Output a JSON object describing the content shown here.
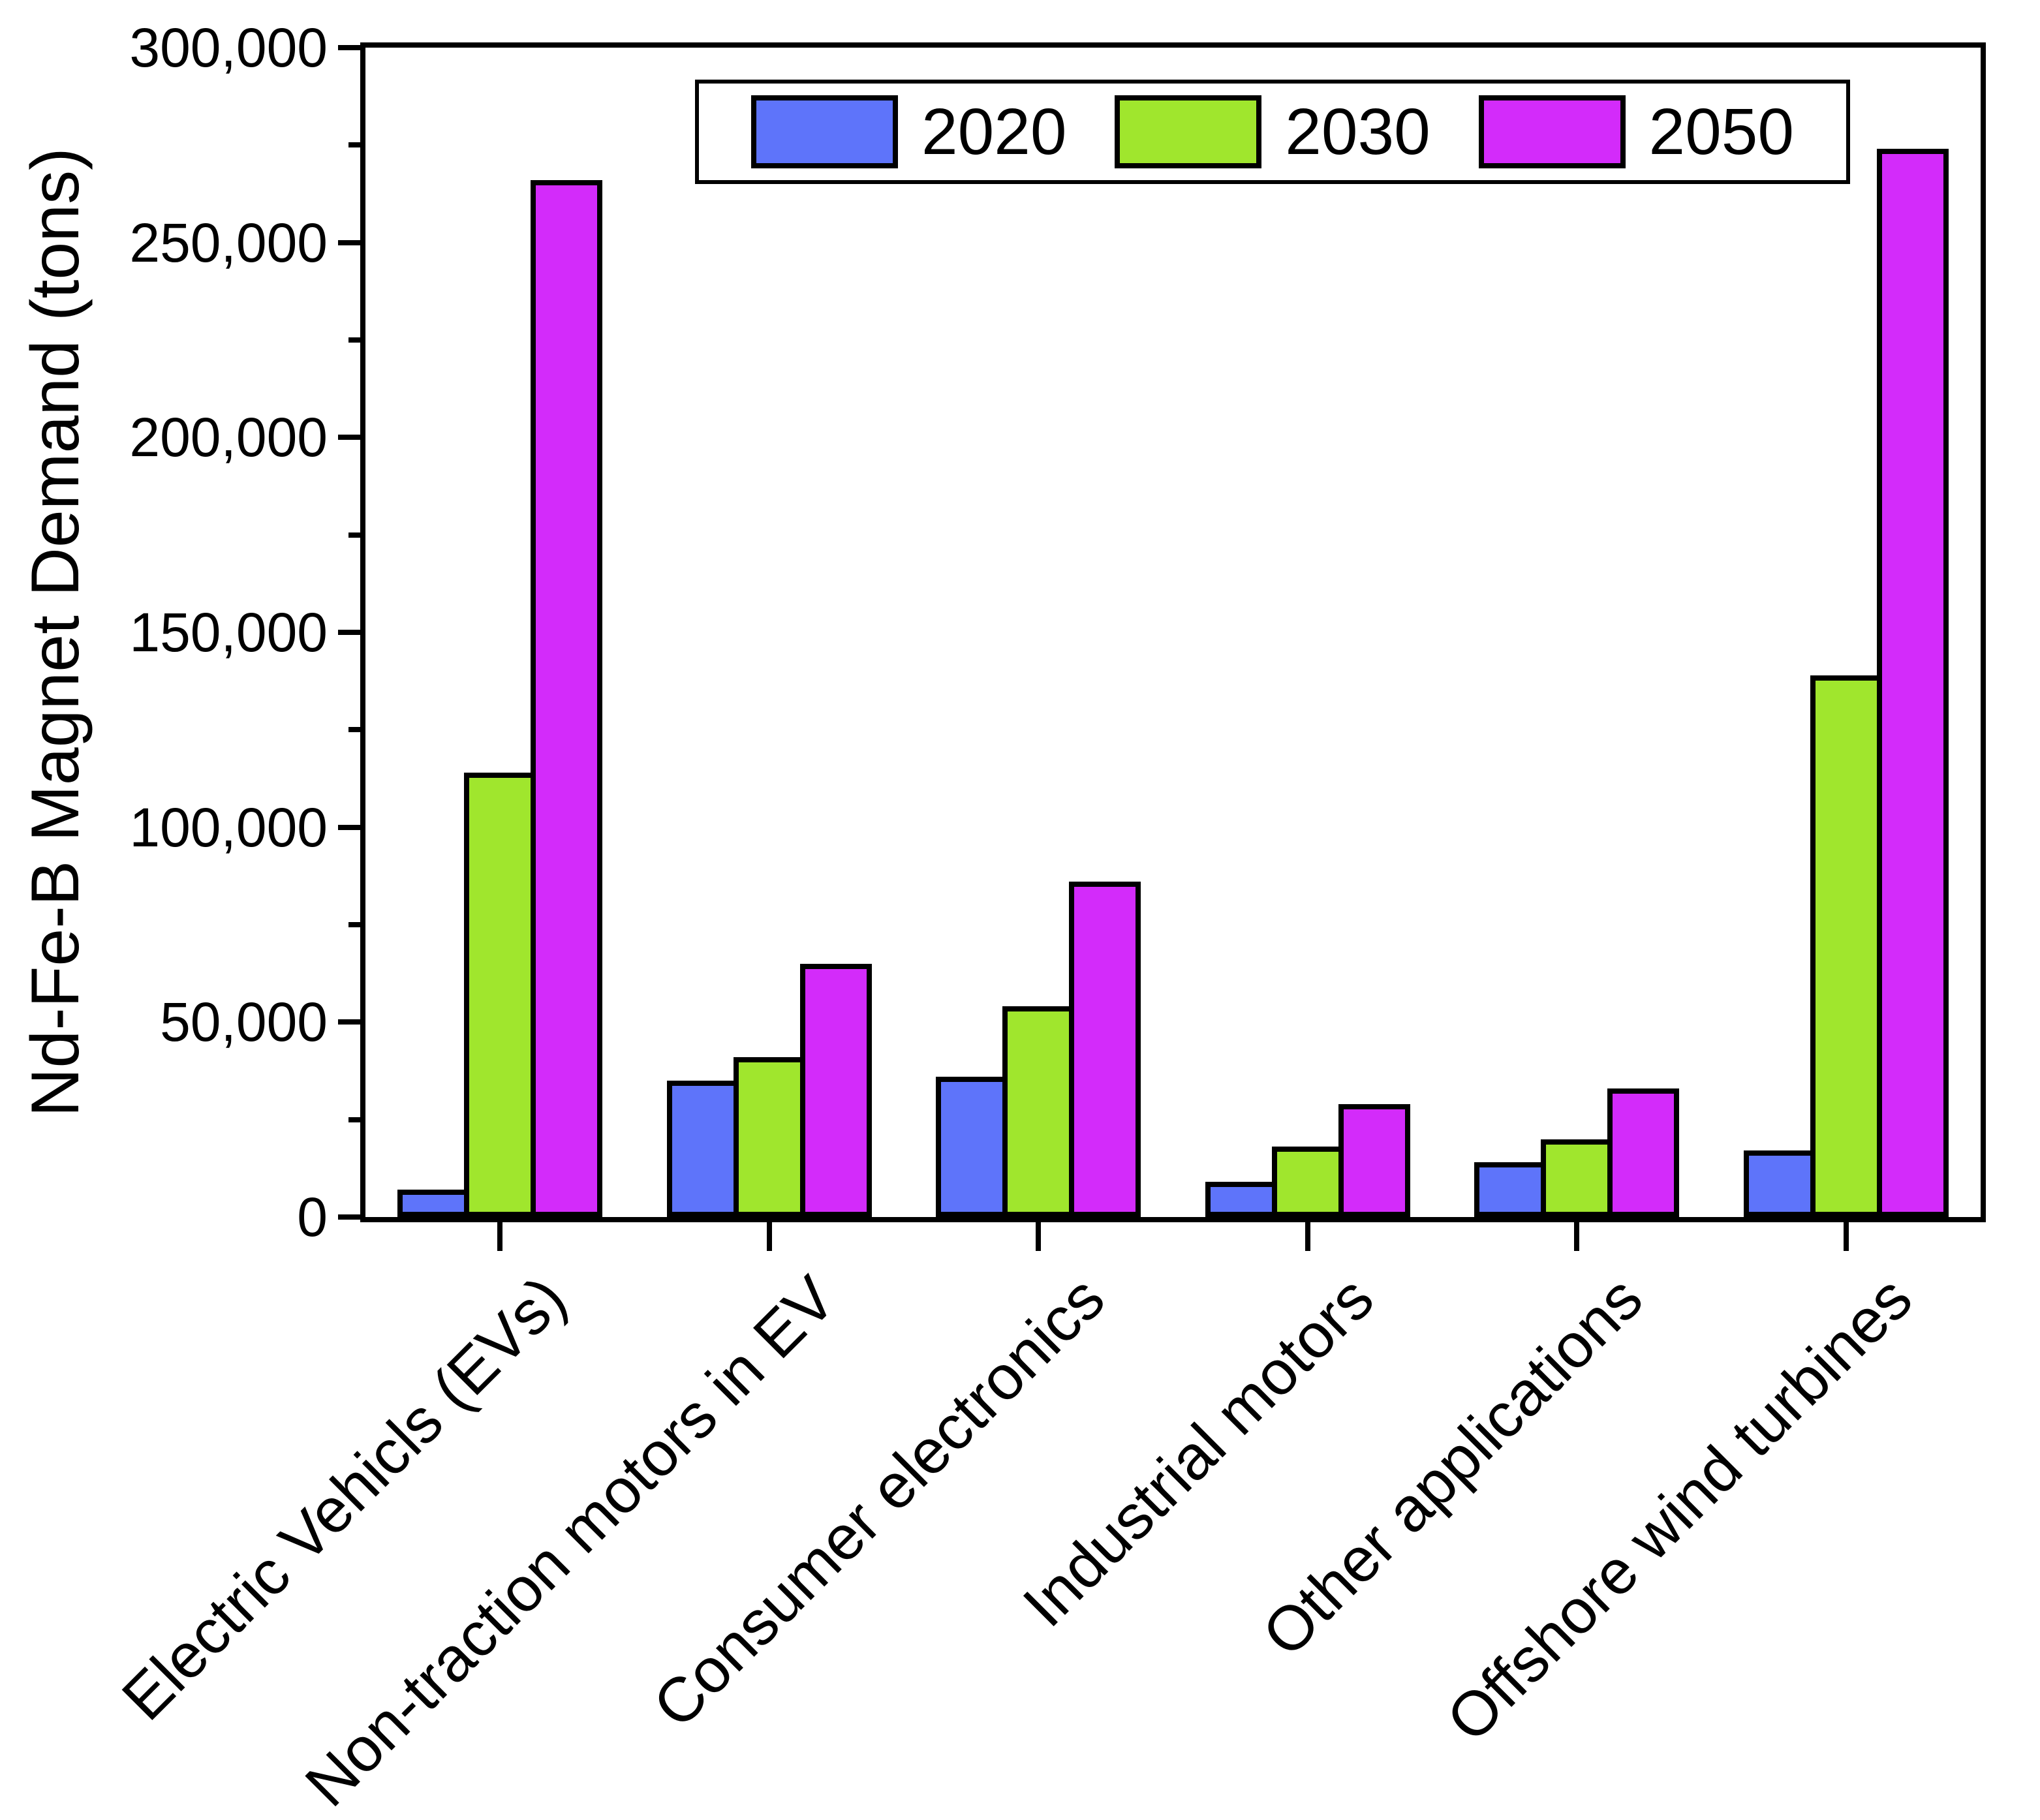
{
  "figure": {
    "background": "#FFFFFF"
  },
  "chart_data": {
    "type": "bar",
    "title": "",
    "xlabel": "",
    "ylabel": "Nd-Fe-B Magnet Demand (tons)",
    "ylim": [
      0,
      300000
    ],
    "ytick_interval": 50000,
    "ytick_minor_interval": 25000,
    "ytick_labels": [
      "0",
      "50,000",
      "100,000",
      "150,000",
      "200,000",
      "250,000",
      "300,000"
    ],
    "grid": false,
    "legend_position": "top-center-inside",
    "categories": [
      "Electric Vehicls (EVs)",
      "Non-traction motors in EV",
      "Consumer electronics",
      "Industrial motors",
      "Other applications",
      "Offshore wind turbines"
    ],
    "series": [
      {
        "name": "2020",
        "color": "#5E74FA",
        "values": [
          7000,
          35000,
          36000,
          9000,
          14000,
          17000
        ]
      },
      {
        "name": "2030",
        "color": "#A0E62D",
        "values": [
          114000,
          41000,
          54000,
          18000,
          20000,
          139000
        ]
      },
      {
        "name": "2050",
        "color": "#D32BFA",
        "values": [
          266000,
          65000,
          86000,
          29000,
          33000,
          274000
        ]
      }
    ],
    "bar_edge_color": "#000000",
    "axis_color": "#000000"
  }
}
